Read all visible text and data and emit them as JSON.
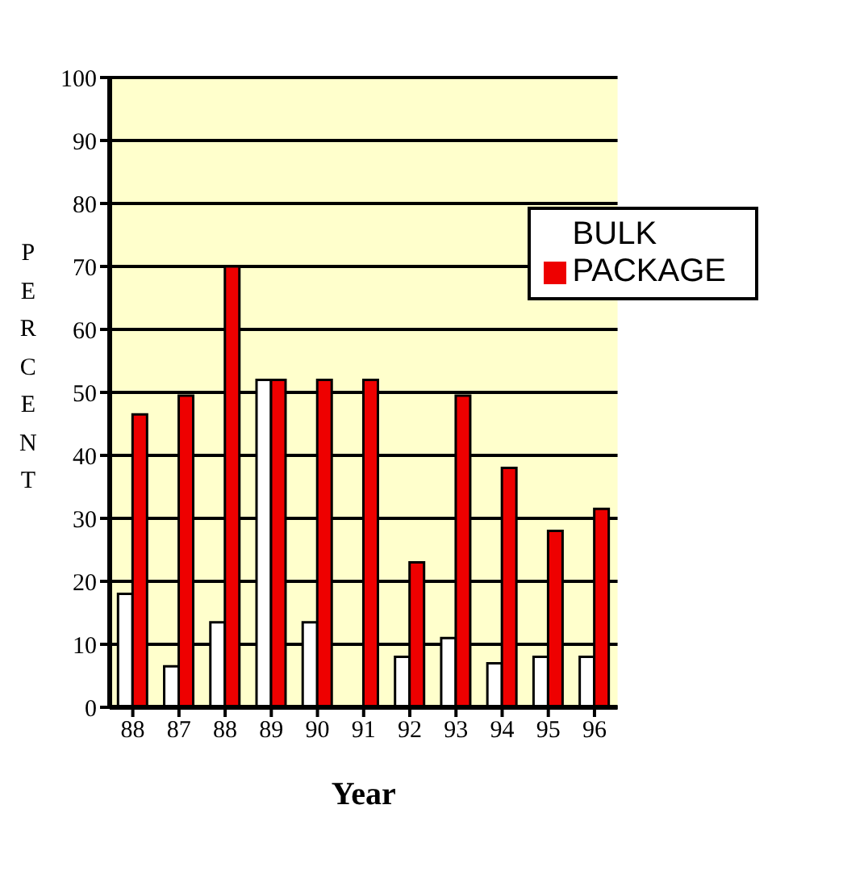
{
  "chart_data": {
    "type": "bar",
    "xlabel": "Year",
    "ylabel": "PERCENT",
    "categories": [
      "88",
      "87",
      "88",
      "89",
      "90",
      "91",
      "92",
      "93",
      "94",
      "95",
      "96"
    ],
    "series": [
      {
        "name": "BULK",
        "color": "#ffffff",
        "values": [
          18,
          6.5,
          13.5,
          52,
          13.5,
          0,
          8,
          11,
          7,
          8,
          8
        ]
      },
      {
        "name": "PACKAGE",
        "color": "#ee0000",
        "values": [
          46.5,
          49.5,
          70,
          52,
          52,
          52,
          23,
          49.5,
          38,
          28,
          31.5
        ]
      }
    ],
    "ylim": [
      0,
      100
    ],
    "yticks": [
      0,
      10,
      20,
      30,
      40,
      50,
      60,
      70,
      80,
      90,
      100
    ],
    "grid": "y",
    "legend": "top right"
  }
}
